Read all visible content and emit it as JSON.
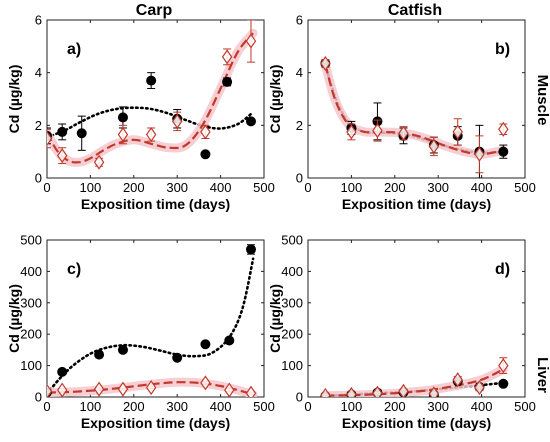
{
  "column_titles": [
    "Carp",
    "Catfish"
  ],
  "row_titles": [
    "Muscle",
    "Liver"
  ],
  "colors": {
    "black_series": "#000000",
    "red_series_stroke": "#c0392b",
    "red_series_fill": "#ffffff",
    "red_band": "#f6c6cc",
    "red_curve": "#c0392b",
    "black_curve": "#000000"
  },
  "chart_data": [
    {
      "panel": "a)",
      "type": "scatter",
      "xlabel": "Exposition time (days)",
      "ylabel": "Cd (µg/kg)",
      "xlim": [
        0,
        500
      ],
      "ylim": [
        0,
        6
      ],
      "xticks": [
        0,
        100,
        200,
        300,
        400,
        500
      ],
      "yticks": [
        0,
        2,
        4,
        6
      ],
      "series": [
        {
          "marker": "filled-circle",
          "x": [
            0,
            35,
            80,
            175,
            240,
            300,
            365,
            415,
            470
          ],
          "y": [
            1.6,
            1.75,
            1.7,
            2.3,
            3.7,
            2.25,
            0.9,
            3.65,
            2.15
          ],
          "err": [
            0.3,
            0.3,
            0.65,
            0.4,
            0.3,
            0.35,
            0.05,
            0.15,
            0.05
          ],
          "fit": "dotted",
          "fit_x": [
            0,
            40,
            80,
            120,
            160,
            200,
            240,
            280,
            320,
            360,
            400,
            440,
            475
          ],
          "fit_y": [
            1.55,
            1.8,
            2.15,
            2.45,
            2.62,
            2.67,
            2.62,
            2.45,
            2.2,
            1.97,
            1.88,
            2.05,
            2.5
          ]
        },
        {
          "marker": "open-diamond",
          "x": [
            0,
            35,
            120,
            175,
            240,
            300,
            365,
            415,
            470
          ],
          "y": [
            1.5,
            0.85,
            0.6,
            1.65,
            1.65,
            2.15,
            1.75,
            4.6,
            5.2
          ],
          "err": [
            0.35,
            0.3,
            0.15,
            0.35,
            0.25,
            0.35,
            0.25,
            0.3,
            0.8
          ],
          "fit": "dashed-band",
          "fit_x": [
            0,
            25,
            50,
            75,
            100,
            130,
            160,
            200,
            240,
            280,
            320,
            360,
            400,
            440,
            475
          ],
          "fit_y": [
            1.7,
            1.0,
            0.65,
            0.6,
            0.75,
            1.05,
            1.3,
            1.45,
            1.3,
            1.15,
            1.25,
            2.05,
            3.4,
            4.8,
            5.5
          ]
        }
      ]
    },
    {
      "panel": "b)",
      "type": "scatter",
      "xlabel": "Exposition time (days)",
      "ylabel": "Cd (µg/kg)",
      "xlim": [
        0,
        500
      ],
      "ylim": [
        0,
        6
      ],
      "xticks": [
        0,
        100,
        200,
        300,
        400,
        500
      ],
      "yticks": [
        0,
        2,
        4,
        6
      ],
      "series": [
        {
          "marker": "filled-circle",
          "x": [
            40,
            100,
            160,
            220,
            290,
            345,
            395,
            450
          ],
          "y": [
            4.35,
            1.9,
            2.15,
            1.6,
            1.25,
            1.6,
            1.0,
            1.0
          ],
          "err": [
            0.1,
            0.25,
            0.7,
            0.3,
            0.3,
            0.35,
            1.0,
            0.25
          ],
          "fit": "dotted",
          "fit_x": [
            40,
            60,
            80,
            100,
            130,
            160,
            200,
            240,
            280,
            320,
            360,
            400,
            450
          ],
          "fit_y": [
            4.3,
            3.2,
            2.45,
            2.0,
            1.75,
            1.72,
            1.7,
            1.6,
            1.4,
            1.2,
            1.05,
            0.95,
            1.0
          ]
        },
        {
          "marker": "open-diamond",
          "x": [
            40,
            100,
            160,
            220,
            290,
            345,
            395,
            450
          ],
          "y": [
            4.35,
            1.75,
            1.8,
            1.7,
            1.2,
            1.75,
            0.9,
            1.85
          ],
          "err": [
            0.15,
            0.3,
            0.4,
            0.25,
            0.35,
            0.5,
            0.7,
            0.2
          ],
          "fit": "dashed-band",
          "fit_x": [
            40,
            60,
            80,
            100,
            130,
            160,
            200,
            240,
            280,
            320,
            360,
            400,
            450
          ],
          "fit_y": [
            4.3,
            3.1,
            2.35,
            1.95,
            1.75,
            1.75,
            1.73,
            1.65,
            1.45,
            1.2,
            1.0,
            0.9,
            1.05
          ]
        }
      ]
    },
    {
      "panel": "c)",
      "type": "scatter",
      "xlabel": "Exposition time (days)",
      "ylabel": "Cd (µg/kg)",
      "xlim": [
        0,
        500
      ],
      "ylim": [
        0,
        500
      ],
      "xticks": [
        0,
        100,
        200,
        300,
        400,
        500
      ],
      "yticks": [
        0,
        100,
        200,
        300,
        400,
        500
      ],
      "series": [
        {
          "marker": "filled-circle",
          "x": [
            0,
            35,
            120,
            175,
            300,
            365,
            420,
            470
          ],
          "y": [
            15,
            80,
            135,
            150,
            125,
            168,
            180,
            470
          ],
          "err": [
            3,
            8,
            5,
            5,
            5,
            5,
            8,
            15
          ],
          "fit": "dotted",
          "fit_x": [
            0,
            30,
            60,
            100,
            140,
            180,
            220,
            260,
            300,
            340,
            380,
            420,
            450,
            475
          ],
          "fit_y": [
            10,
            60,
            100,
            138,
            158,
            165,
            160,
            148,
            135,
            130,
            140,
            190,
            280,
            440
          ]
        },
        {
          "marker": "open-diamond",
          "x": [
            0,
            35,
            120,
            175,
            240,
            365,
            420,
            470
          ],
          "y": [
            18,
            22,
            25,
            25,
            30,
            45,
            22,
            12
          ],
          "err": [
            3,
            5,
            3,
            3,
            3,
            5,
            5,
            3
          ],
          "fit": "dashed-band",
          "fit_x": [
            0,
            50,
            100,
            150,
            200,
            250,
            300,
            350,
            400,
            450,
            475
          ],
          "fit_y": [
            14,
            16,
            20,
            26,
            34,
            42,
            47,
            45,
            35,
            18,
            8
          ]
        }
      ]
    },
    {
      "panel": "d)",
      "type": "scatter",
      "xlabel": "Exposition time (days)",
      "ylabel": "Cd (µg/kg)",
      "xlim": [
        0,
        500
      ],
      "ylim": [
        0,
        500
      ],
      "xticks": [
        0,
        100,
        200,
        300,
        400,
        500
      ],
      "yticks": [
        0,
        100,
        200,
        300,
        400,
        500
      ],
      "series": [
        {
          "marker": "filled-circle",
          "x": [
            40,
            100,
            160,
            220,
            290,
            345,
            395,
            450
          ],
          "y": [
            3,
            8,
            14,
            15,
            8,
            50,
            32,
            42
          ],
          "err": [
            2,
            3,
            3,
            3,
            3,
            5,
            5,
            5
          ],
          "fit": "dotted",
          "fit_x": [
            40,
            100,
            160,
            220,
            280,
            340,
            400,
            450
          ],
          "fit_y": [
            3,
            8,
            12,
            16,
            22,
            30,
            38,
            45
          ]
        },
        {
          "marker": "open-diamond",
          "x": [
            40,
            100,
            160,
            220,
            290,
            345,
            395,
            450
          ],
          "y": [
            5,
            8,
            12,
            18,
            10,
            55,
            30,
            100
          ],
          "err": [
            3,
            3,
            3,
            5,
            4,
            10,
            10,
            25
          ],
          "fit": "dashed-band",
          "fit_x": [
            40,
            100,
            160,
            220,
            280,
            340,
            400,
            450
          ],
          "fit_y": [
            4,
            6,
            9,
            14,
            22,
            36,
            55,
            88
          ]
        }
      ]
    }
  ]
}
